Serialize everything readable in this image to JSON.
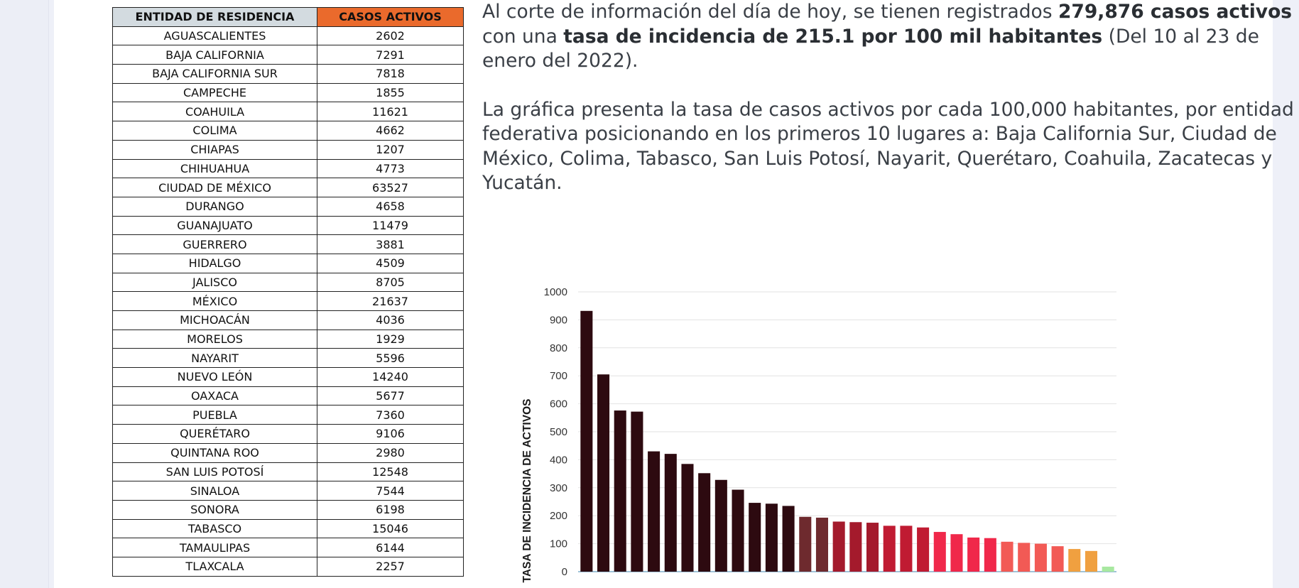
{
  "table": {
    "headers": [
      "ENTIDAD DE RESIDENCIA",
      "CASOS ACTIVOS"
    ],
    "rows": [
      [
        "AGUASCALIENTES",
        "2602"
      ],
      [
        "BAJA CALIFORNIA",
        "7291"
      ],
      [
        "BAJA CALIFORNIA SUR",
        "7818"
      ],
      [
        "CAMPECHE",
        "1855"
      ],
      [
        "COAHUILA",
        "11621"
      ],
      [
        "COLIMA",
        "4662"
      ],
      [
        "CHIAPAS",
        "1207"
      ],
      [
        "CHIHUAHUA",
        "4773"
      ],
      [
        "CIUDAD DE MÉXICO",
        "63527"
      ],
      [
        "DURANGO",
        "4658"
      ],
      [
        "GUANAJUATO",
        "11479"
      ],
      [
        "GUERRERO",
        "3881"
      ],
      [
        "HIDALGO",
        "4509"
      ],
      [
        "JALISCO",
        "8705"
      ],
      [
        "MÉXICO",
        "21637"
      ],
      [
        "MICHOACÁN",
        "4036"
      ],
      [
        "MORELOS",
        "1929"
      ],
      [
        "NAYARIT",
        "5596"
      ],
      [
        "NUEVO LEÓN",
        "14240"
      ],
      [
        "OAXACA",
        "5677"
      ],
      [
        "PUEBLA",
        "7360"
      ],
      [
        "QUERÉTARO",
        "9106"
      ],
      [
        "QUINTANA ROO",
        "2980"
      ],
      [
        "SAN LUIS POTOSÍ",
        "12548"
      ],
      [
        "SINALOA",
        "7544"
      ],
      [
        "SONORA",
        "6198"
      ],
      [
        "TABASCO",
        "15046"
      ],
      [
        "TAMAULIPAS",
        "6144"
      ],
      [
        "TLAXCALA",
        "2257"
      ]
    ]
  },
  "paragraph1": {
    "t1": "Al corte de información del día de hoy, se tienen registrados ",
    "b1": "279,876 casos activos",
    "t2": " con una ",
    "b2": "tasa de incidencia de 215.1 por 100 mil habitantes",
    "t3": " (Del 10 al 23 de enero del 2022)."
  },
  "paragraph2": "La gráfica presenta la tasa de casos activos por cada 100,000 habitantes, por entidad federativa posicionando en los primeros 10 lugares a: Baja California Sur, Ciudad de México, Colima, Tabasco, San Luis Potosí, Nayarit, Querétaro, Coahuila, Zacatecas y Yucatán.",
  "chart_data": {
    "type": "bar",
    "ylabel": "TASA DE INCIDENCIA DE ACTIVOS",
    "ylim": [
      0,
      1000
    ],
    "yticks": [
      0,
      100,
      200,
      300,
      400,
      500,
      600,
      700,
      800,
      900,
      1000
    ],
    "grid": true,
    "values": [
      932,
      705,
      576,
      572,
      430,
      421,
      385,
      352,
      328,
      293,
      246,
      243,
      235,
      196,
      193,
      179,
      177,
      175,
      164,
      164,
      158,
      142,
      134,
      122,
      120,
      107,
      103,
      100,
      91,
      81,
      74,
      18
    ],
    "colors": [
      "#2d0a10",
      "#2d0a10",
      "#2d0a10",
      "#2d0a10",
      "#2d0a10",
      "#2d0a10",
      "#2d0a10",
      "#2d0a10",
      "#2d0a10",
      "#2d0a10",
      "#2d0a10",
      "#2d0a10",
      "#2d0a10",
      "#6e2a2e",
      "#6e2a2e",
      "#a41a2c",
      "#a41a2c",
      "#a41a2c",
      "#c01b32",
      "#c01b32",
      "#c01b32",
      "#f0284a",
      "#f0284a",
      "#f0284a",
      "#f0284a",
      "#f25a55",
      "#f25a55",
      "#f25a55",
      "#f25a55",
      "#f0a040",
      "#f0a040",
      "#a8e8a0"
    ]
  }
}
